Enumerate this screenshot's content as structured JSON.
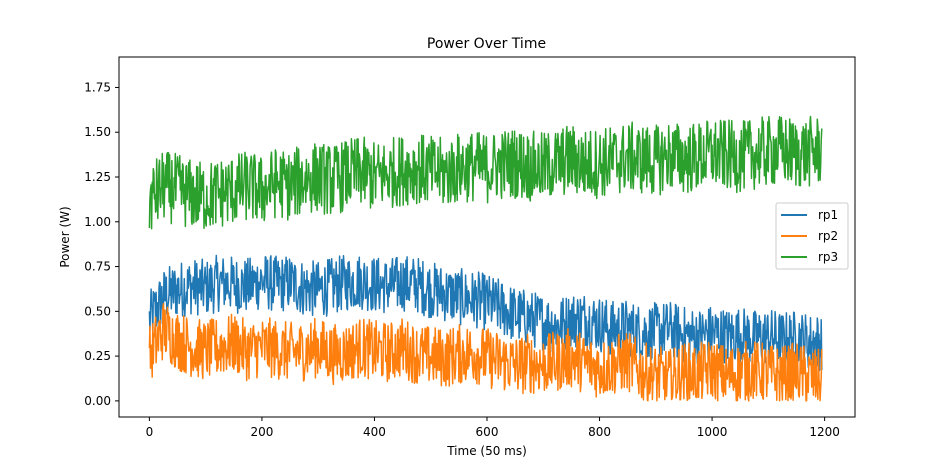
{
  "chart_data": {
    "type": "line",
    "title": "Power Over Time",
    "xlabel": "Time (50 ms)",
    "ylabel": "Power (W)",
    "xlim": [
      -54,
      1254
    ],
    "ylim": [
      -0.09,
      1.92
    ],
    "xticks": [
      0,
      200,
      400,
      600,
      800,
      1000,
      1200
    ],
    "xtick_labels": [
      "0",
      "200",
      "400",
      "600",
      "800",
      "1000",
      "1200"
    ],
    "yticks": [
      0.0,
      0.25,
      0.5,
      0.75,
      1.0,
      1.25,
      1.5,
      1.75
    ],
    "ytick_labels": [
      "0.00",
      "0.25",
      "0.50",
      "0.75",
      "1.00",
      "1.25",
      "1.50",
      "1.75"
    ],
    "grid": false,
    "legend_position": "center-right",
    "series": [
      {
        "name": "rp1",
        "color": "#1f77b4",
        "x": [
          0,
          25,
          50,
          75,
          100,
          125,
          150,
          175,
          200,
          225,
          250,
          275,
          300,
          325,
          350,
          375,
          400,
          425,
          450,
          475,
          500,
          525,
          550,
          575,
          600,
          625,
          650,
          675,
          700,
          725,
          750,
          775,
          800,
          825,
          850,
          875,
          900,
          925,
          950,
          975,
          1000,
          1025,
          1050,
          1075,
          1100,
          1125,
          1150,
          1175,
          1195
        ],
        "values": [
          0.45,
          0.58,
          0.62,
          0.64,
          0.63,
          0.66,
          0.65,
          0.64,
          0.67,
          0.65,
          0.66,
          0.63,
          0.62,
          0.64,
          0.66,
          0.67,
          0.65,
          0.64,
          0.66,
          0.65,
          0.62,
          0.6,
          0.58,
          0.57,
          0.55,
          0.52,
          0.48,
          0.46,
          0.44,
          0.42,
          0.45,
          0.46,
          0.43,
          0.4,
          0.41,
          0.38,
          0.39,
          0.4,
          0.37,
          0.36,
          0.38,
          0.36,
          0.37,
          0.35,
          0.36,
          0.34,
          0.35,
          0.33,
          0.33
        ]
      },
      {
        "name": "rp2",
        "color": "#ff7f0e",
        "x": [
          0,
          25,
          50,
          75,
          100,
          125,
          150,
          175,
          200,
          225,
          250,
          275,
          300,
          325,
          350,
          375,
          400,
          425,
          450,
          475,
          500,
          525,
          550,
          575,
          600,
          625,
          650,
          675,
          700,
          725,
          750,
          775,
          800,
          825,
          850,
          875,
          900,
          925,
          950,
          975,
          1000,
          1025,
          1050,
          1075,
          1100,
          1125,
          1150,
          1175,
          1195
        ],
        "values": [
          0.25,
          0.4,
          0.34,
          0.3,
          0.28,
          0.3,
          0.32,
          0.28,
          0.3,
          0.29,
          0.27,
          0.28,
          0.3,
          0.26,
          0.27,
          0.3,
          0.28,
          0.27,
          0.3,
          0.26,
          0.25,
          0.24,
          0.26,
          0.27,
          0.24,
          0.22,
          0.2,
          0.21,
          0.2,
          0.22,
          0.24,
          0.21,
          0.18,
          0.2,
          0.22,
          0.16,
          0.14,
          0.12,
          0.16,
          0.15,
          0.18,
          0.14,
          0.16,
          0.17,
          0.15,
          0.14,
          0.16,
          0.13,
          0.12
        ]
      },
      {
        "name": "rp3",
        "color": "#2ca02c",
        "x": [
          0,
          25,
          50,
          75,
          100,
          125,
          150,
          175,
          200,
          225,
          250,
          275,
          300,
          325,
          350,
          375,
          400,
          425,
          450,
          475,
          500,
          525,
          550,
          575,
          600,
          625,
          650,
          675,
          700,
          725,
          750,
          775,
          800,
          825,
          850,
          875,
          900,
          925,
          950,
          975,
          1000,
          1025,
          1050,
          1075,
          1100,
          1125,
          1150,
          1175,
          1195
        ],
        "values": [
          1.12,
          1.2,
          1.18,
          1.15,
          1.14,
          1.16,
          1.18,
          1.2,
          1.17,
          1.22,
          1.2,
          1.24,
          1.25,
          1.23,
          1.26,
          1.28,
          1.25,
          1.27,
          1.29,
          1.3,
          1.28,
          1.27,
          1.3,
          1.31,
          1.3,
          1.32,
          1.33,
          1.31,
          1.3,
          1.33,
          1.35,
          1.32,
          1.33,
          1.34,
          1.36,
          1.35,
          1.34,
          1.37,
          1.35,
          1.36,
          1.38,
          1.37,
          1.36,
          1.38,
          1.39,
          1.4,
          1.38,
          1.39,
          1.4
        ]
      }
    ]
  }
}
